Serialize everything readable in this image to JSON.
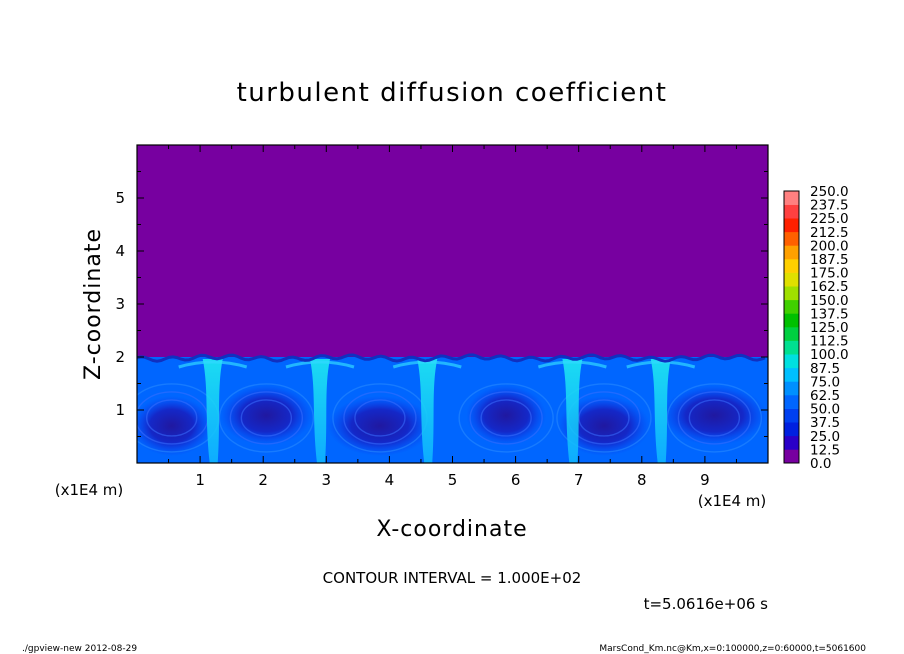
{
  "chart_data": {
    "type": "heatmap",
    "title": "turbulent diffusion coefficient",
    "xlabel": "X-coordinate",
    "ylabel": "Z-coordinate",
    "x_unit": "(x1E4 m)",
    "y_unit": "(x1E4 m)",
    "x_ticks": [
      "1",
      "2",
      "3",
      "4",
      "5",
      "6",
      "7",
      "8",
      "9"
    ],
    "y_ticks": [
      "1",
      "2",
      "3",
      "4",
      "5"
    ],
    "xlim": [
      0,
      10
    ],
    "ylim": [
      0,
      6
    ],
    "boundary_layer_top": 2.0,
    "upper_region_value": 0.0,
    "plumes_x": [
      1.2,
      2.9,
      4.6,
      6.9,
      8.3
    ],
    "colorbar": {
      "levels": [
        "0.0",
        "12.5",
        "25.0",
        "37.5",
        "50.0",
        "62.5",
        "75.0",
        "87.5",
        "100.0",
        "112.5",
        "125.0",
        "137.5",
        "150.0",
        "162.5",
        "175.0",
        "187.5",
        "200.0",
        "212.5",
        "225.0",
        "237.5",
        "250.0"
      ],
      "colors": [
        "#7700a0",
        "#2a00c8",
        "#0020e0",
        "#0040f0",
        "#0066ff",
        "#0090ff",
        "#00c0ff",
        "#00e0e0",
        "#00e090",
        "#00d040",
        "#00c000",
        "#40d000",
        "#a0e000",
        "#e0e000",
        "#ffd000",
        "#ffa000",
        "#ff6000",
        "#ff2000",
        "#ff4040",
        "#ff8080"
      ]
    }
  },
  "annotations": {
    "contour_interval": "CONTOUR INTERVAL = 1.000E+02",
    "time": "t=5.0616e+06 s",
    "program": "./gpview-new  2012-08-29",
    "source": "MarsCond_Km.nc@Km,x=0:100000,z=0:60000,t=5061600"
  }
}
